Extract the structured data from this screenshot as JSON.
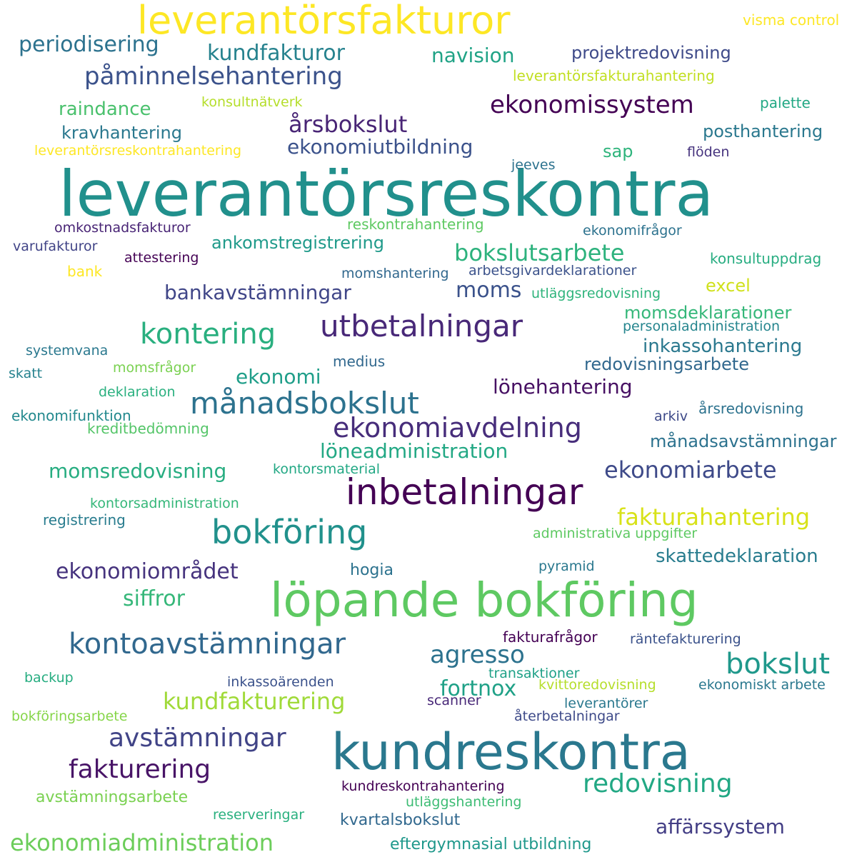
{
  "palette": {
    "dark_purple": "#440154",
    "indigo": "#3b528b",
    "slate": "#31688e",
    "teal": "#21908c",
    "green": "#35b779",
    "lime": "#8fd744",
    "yellow": "#fde725"
  },
  "words": [
    {
      "text": "leverantörsreskontra",
      "color": "#21908c"
    },
    {
      "text": "löpande bokföring",
      "color": "#5ec962"
    },
    {
      "text": "kundreskontra",
      "color": "#2a788e"
    },
    {
      "text": "leverantörsfakturor",
      "color": "#fde725"
    },
    {
      "text": "inbetalningar",
      "color": "#440154"
    },
    {
      "text": "bokföring",
      "color": "#21918c"
    },
    {
      "text": "kontoavstämningar",
      "color": "#31688e"
    },
    {
      "text": "utbetalningar",
      "color": "#482878"
    },
    {
      "text": "månadsbokslut",
      "color": "#2c728e"
    },
    {
      "text": "ekonomiavdelning",
      "color": "#472d7b"
    },
    {
      "text": "kontering",
      "color": "#29af7f"
    },
    {
      "text": "påminnelsehantering",
      "color": "#3b528b"
    },
    {
      "text": "ekonomissystem",
      "color": "#440154"
    },
    {
      "text": "bokslut",
      "color": "#1f988b"
    },
    {
      "text": "avstämningar",
      "color": "#414487"
    },
    {
      "text": "fakturering",
      "color": "#481467"
    },
    {
      "text": "redovisning",
      "color": "#22a884"
    },
    {
      "text": "ekonomiadministration",
      "color": "#6ccd5a"
    },
    {
      "text": "bokslutsarbete",
      "color": "#2db27d"
    },
    {
      "text": "ekonomiarbete",
      "color": "#3e4a89"
    },
    {
      "text": "kundfakturor",
      "color": "#26828e"
    },
    {
      "text": "periodisering",
      "color": "#2c728e"
    },
    {
      "text": "årsbokslut",
      "color": "#482475"
    },
    {
      "text": "agresso",
      "color": "#2c728e"
    },
    {
      "text": "fakturahantering",
      "color": "#d8e219"
    },
    {
      "text": "kundfakturering",
      "color": "#a0da39"
    },
    {
      "text": "ekonomiområdet",
      "color": "#46337e"
    },
    {
      "text": "fortnox",
      "color": "#1fa187"
    },
    {
      "text": "navision",
      "color": "#20a386"
    },
    {
      "text": "ekonomiutbildning",
      "color": "#3b528b"
    },
    {
      "text": "momsredovisning",
      "color": "#27ad81"
    },
    {
      "text": "löneadministration",
      "color": "#22a884"
    },
    {
      "text": "affärssystem",
      "color": "#433e85"
    },
    {
      "text": "bankavstämningar",
      "color": "#404688"
    },
    {
      "text": "moms",
      "color": "#3b528b"
    },
    {
      "text": "ekonomi",
      "color": "#1f9e89"
    },
    {
      "text": "lönehantering",
      "color": "#471063"
    },
    {
      "text": "siffror",
      "color": "#35b779"
    },
    {
      "text": "raindance",
      "color": "#4ac16d"
    },
    {
      "text": "inkassohantering",
      "color": "#2a788e"
    },
    {
      "text": "skattedeklaration",
      "color": "#287c8e"
    },
    {
      "text": "projektredovisning",
      "color": "#3e4a89"
    },
    {
      "text": "kravhantering",
      "color": "#2a788e"
    },
    {
      "text": "ankomstregistrering",
      "color": "#1f9a8a"
    },
    {
      "text": "momsdeklarationer",
      "color": "#35b779"
    },
    {
      "text": "redovisningsarbete",
      "color": "#31688e"
    },
    {
      "text": "posthantering",
      "color": "#2a788e"
    },
    {
      "text": "månadsavstämningar",
      "color": "#2c728e"
    },
    {
      "text": "sap",
      "color": "#2fb47c"
    },
    {
      "text": "excel",
      "color": "#d0e11c"
    },
    {
      "text": "avstämningsarbete",
      "color": "#7ad151"
    },
    {
      "text": "eftergymnasial utbildning",
      "color": "#1f988b"
    },
    {
      "text": "kvartalsbokslut",
      "color": "#31688e"
    },
    {
      "text": "hogia",
      "color": "#2c728e"
    },
    {
      "text": "visma control",
      "color": "#fde725"
    },
    {
      "text": "leverantörsfakturahantering",
      "color": "#c2df23"
    },
    {
      "text": "konsultnätverk",
      "color": "#b5de2b"
    },
    {
      "text": "palette",
      "color": "#22a884"
    },
    {
      "text": "leverantörsreskontrahantering",
      "color": "#fde725"
    },
    {
      "text": "flöden",
      "color": "#46337e"
    },
    {
      "text": "jeeves",
      "color": "#2c728e"
    },
    {
      "text": "omkostnadsfakturor",
      "color": "#482475"
    },
    {
      "text": "reskontrahantering",
      "color": "#5ec962"
    },
    {
      "text": "ekonomifrågor",
      "color": "#2c728e"
    },
    {
      "text": "varufakturor",
      "color": "#414487"
    },
    {
      "text": "attestering",
      "color": "#440154"
    },
    {
      "text": "konsultuppdrag",
      "color": "#27ad81"
    },
    {
      "text": "bank",
      "color": "#fde725"
    },
    {
      "text": "momshantering",
      "color": "#31688e"
    },
    {
      "text": "arbetsgivardeklarationer",
      "color": "#3b528b"
    },
    {
      "text": "utläggsredovisning",
      "color": "#2fb47c"
    },
    {
      "text": "personaladministration",
      "color": "#25858e"
    },
    {
      "text": "systemvana",
      "color": "#2a788e"
    },
    {
      "text": "medius",
      "color": "#31688e"
    },
    {
      "text": "skatt",
      "color": "#26828e"
    },
    {
      "text": "momsfrågor",
      "color": "#7ad151"
    },
    {
      "text": "deklaration",
      "color": "#2ab07f"
    },
    {
      "text": "årsredovisning",
      "color": "#2c728e"
    },
    {
      "text": "ekonomifunktion",
      "color": "#23898e"
    },
    {
      "text": "arkiv",
      "color": "#3e4a89"
    },
    {
      "text": "kreditbedömning",
      "color": "#54c568"
    },
    {
      "text": "kontorsmaterial",
      "color": "#22a884"
    },
    {
      "text": "kontorsadministration",
      "color": "#35b779"
    },
    {
      "text": "registrering",
      "color": "#287c8e"
    },
    {
      "text": "administrativa uppgifter",
      "color": "#5ec962"
    },
    {
      "text": "pyramid",
      "color": "#2a788e"
    },
    {
      "text": "fakturafrågor",
      "color": "#440154"
    },
    {
      "text": "räntefakturering",
      "color": "#3b528b"
    },
    {
      "text": "transaktioner",
      "color": "#1fa187"
    },
    {
      "text": "backup",
      "color": "#27ad81"
    },
    {
      "text": "inkassoärenden",
      "color": "#3b528b"
    },
    {
      "text": "kvittoredovisning",
      "color": "#b5de2b"
    },
    {
      "text": "ekonomiskt arbete",
      "color": "#2a788e"
    },
    {
      "text": "scanner",
      "color": "#482878"
    },
    {
      "text": "leverantörer",
      "color": "#2a788e"
    },
    {
      "text": "bokföringsarbete",
      "color": "#86d549"
    },
    {
      "text": "återbetalningar",
      "color": "#3e4a89"
    },
    {
      "text": "kundreskontrahantering",
      "color": "#440154"
    },
    {
      "text": "utläggshantering",
      "color": "#3dbc74"
    },
    {
      "text": "reserveringar",
      "color": "#2ab07f"
    }
  ]
}
